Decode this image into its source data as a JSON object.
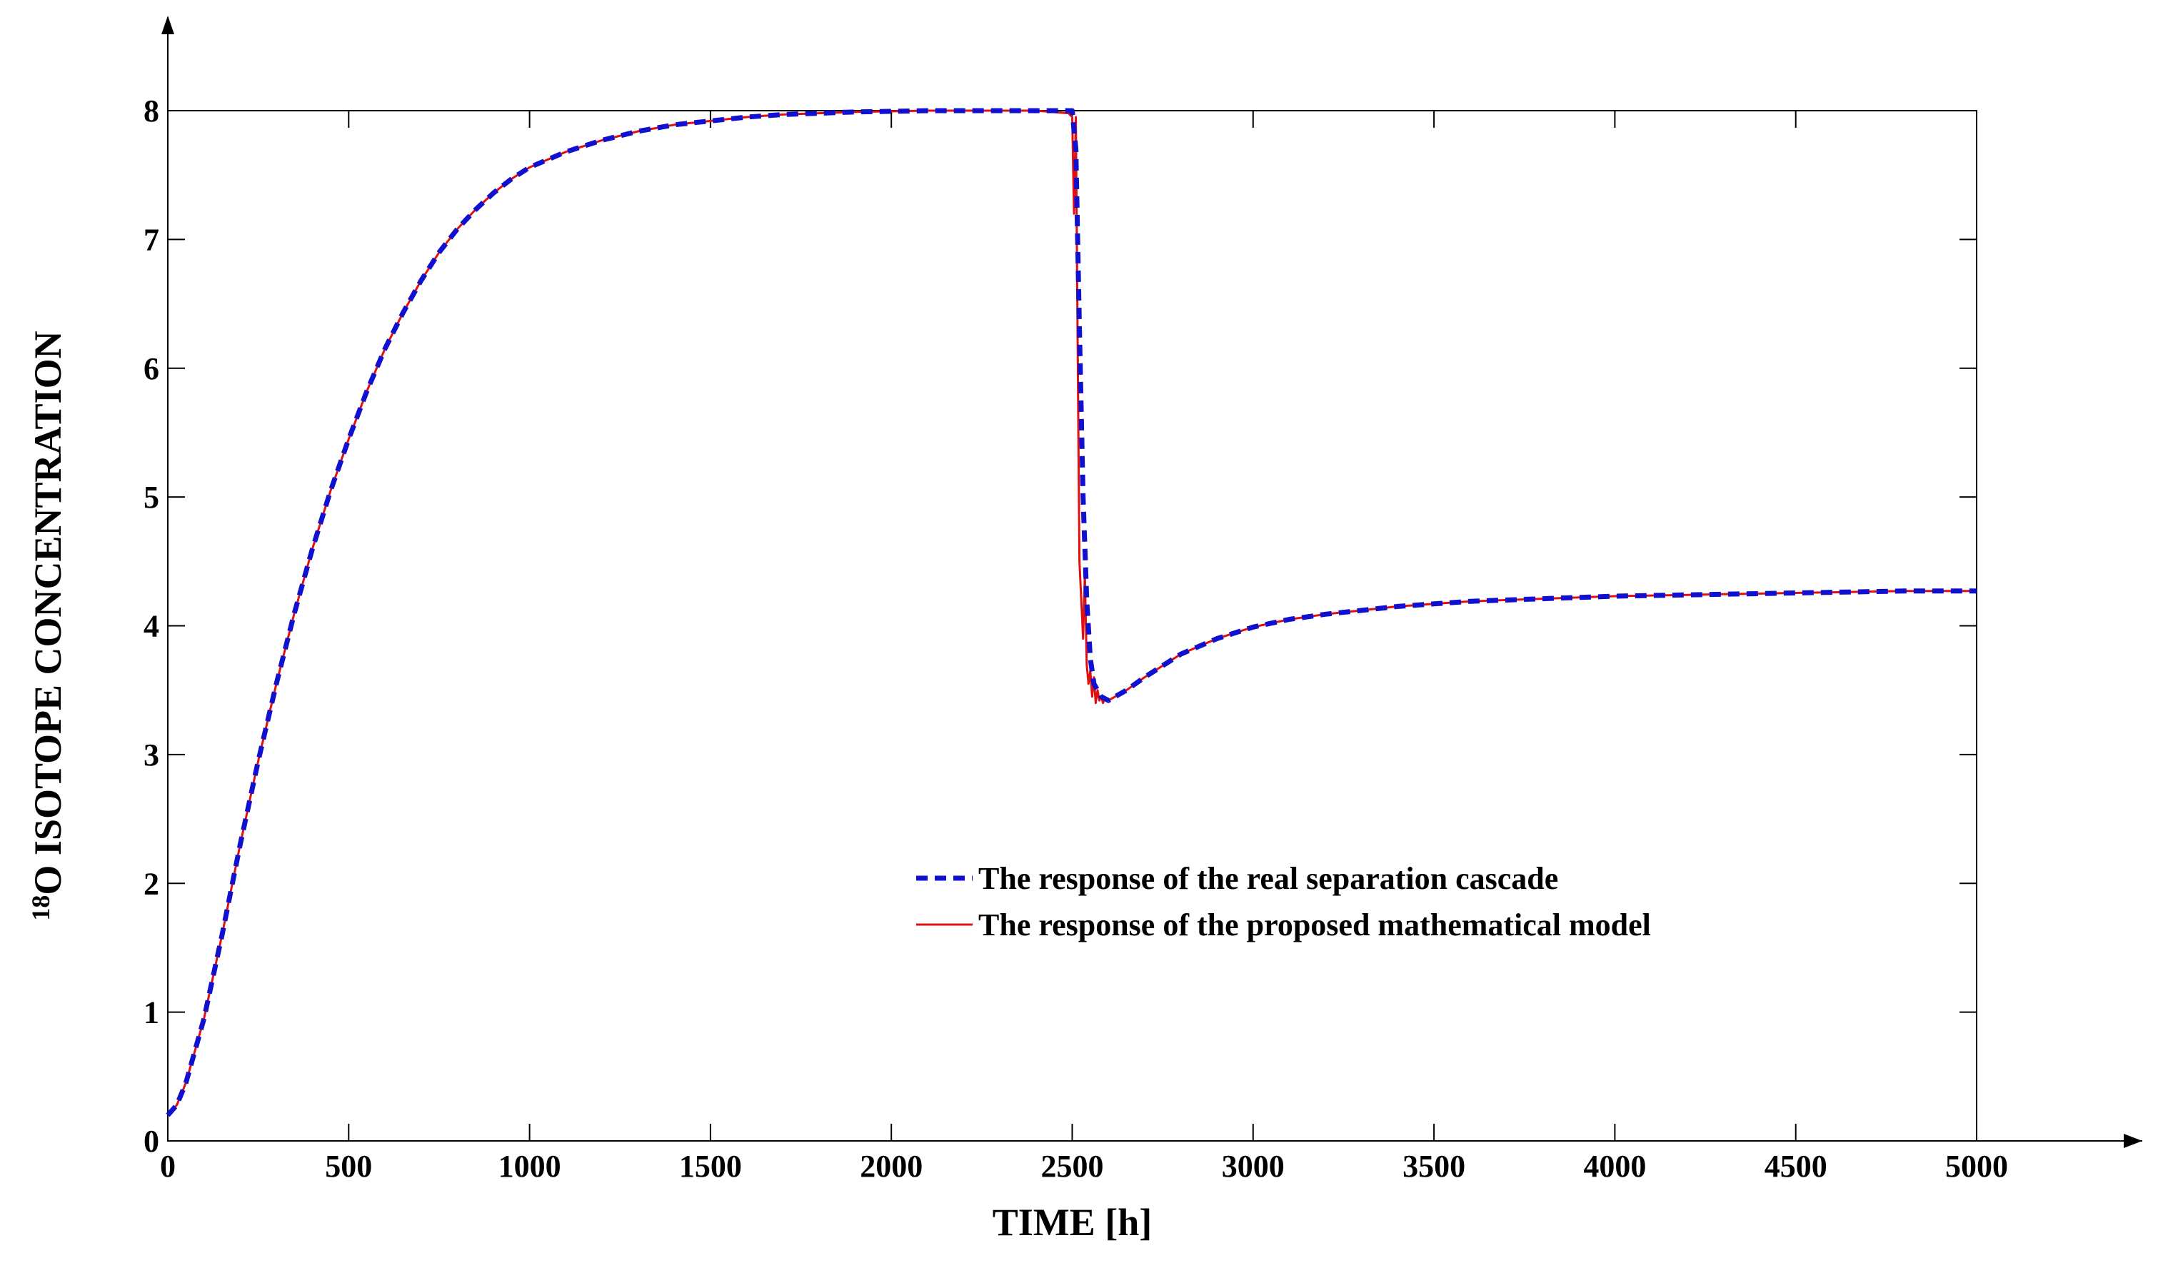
{
  "chart_data": {
    "type": "line",
    "xlabel": "TIME [h]",
    "ylabel_sup": "18",
    "ylabel_main": "O ISOTOPE CONCENTRATION",
    "xlim": [
      0,
      5000
    ],
    "ylim": [
      0,
      8
    ],
    "xticks": [
      0,
      500,
      1000,
      1500,
      2000,
      2500,
      3000,
      3500,
      4000,
      4500,
      5000
    ],
    "yticks": [
      0,
      1,
      2,
      3,
      4,
      5,
      6,
      7,
      8
    ],
    "grid": false,
    "legend_position": "center",
    "series": [
      {
        "name": "The response of the real separation cascade",
        "color": "#1010d0",
        "style": "dashed",
        "x": [
          0,
          25,
          50,
          100,
          150,
          200,
          250,
          300,
          350,
          400,
          450,
          500,
          550,
          600,
          650,
          700,
          750,
          800,
          850,
          900,
          950,
          1000,
          1100,
          1200,
          1300,
          1400,
          1500,
          1600,
          1700,
          1800,
          1900,
          2000,
          2100,
          2200,
          2300,
          2400,
          2500,
          2510,
          2520,
          2530,
          2540,
          2550,
          2560,
          2580,
          2600,
          2650,
          2700,
          2800,
          2900,
          3000,
          3100,
          3200,
          3300,
          3400,
          3500,
          3600,
          3800,
          4000,
          4200,
          4400,
          4600,
          4800,
          5000
        ],
        "y": [
          0.2,
          0.28,
          0.45,
          0.95,
          1.6,
          2.3,
          2.95,
          3.55,
          4.1,
          4.6,
          5.05,
          5.45,
          5.82,
          6.15,
          6.43,
          6.68,
          6.9,
          7.08,
          7.23,
          7.36,
          7.47,
          7.56,
          7.68,
          7.77,
          7.84,
          7.89,
          7.92,
          7.95,
          7.97,
          7.98,
          7.99,
          7.995,
          8.0,
          8.0,
          8.0,
          8.0,
          8.0,
          7.7,
          6.3,
          5.0,
          4.2,
          3.75,
          3.55,
          3.45,
          3.42,
          3.5,
          3.6,
          3.78,
          3.9,
          3.99,
          4.05,
          4.09,
          4.12,
          4.15,
          4.17,
          4.19,
          4.21,
          4.23,
          4.24,
          4.25,
          4.26,
          4.27,
          4.27
        ]
      },
      {
        "name": "The response of the proposed mathematical model",
        "color": "#e01010",
        "style": "solid",
        "x": [
          0,
          25,
          50,
          100,
          150,
          200,
          250,
          300,
          350,
          400,
          450,
          500,
          550,
          600,
          650,
          700,
          750,
          800,
          850,
          900,
          950,
          1000,
          1100,
          1200,
          1300,
          1400,
          1500,
          1600,
          1700,
          1800,
          1900,
          2000,
          2100,
          2200,
          2300,
          2400,
          2490,
          2500,
          2505,
          2510,
          2515,
          2520,
          2525,
          2530,
          2535,
          2540,
          2545,
          2550,
          2555,
          2560,
          2565,
          2570,
          2575,
          2580,
          2585,
          2590,
          2600,
          2650,
          2700,
          2800,
          2900,
          3000,
          3100,
          3200,
          3300,
          3400,
          3500,
          3600,
          3800,
          4000,
          4200,
          4400,
          4600,
          4800,
          5000
        ],
        "y": [
          0.2,
          0.28,
          0.45,
          0.95,
          1.6,
          2.3,
          2.95,
          3.55,
          4.1,
          4.6,
          5.05,
          5.45,
          5.82,
          6.15,
          6.43,
          6.68,
          6.9,
          7.08,
          7.23,
          7.36,
          7.47,
          7.56,
          7.68,
          7.77,
          7.84,
          7.89,
          7.92,
          7.95,
          7.97,
          7.98,
          7.99,
          7.995,
          8.0,
          8.0,
          8.0,
          8.0,
          7.98,
          7.95,
          7.2,
          7.95,
          6.2,
          4.5,
          4.2,
          3.9,
          4.4,
          3.7,
          3.55,
          3.65,
          3.45,
          3.6,
          3.4,
          3.5,
          3.42,
          3.45,
          3.4,
          3.44,
          3.42,
          3.5,
          3.6,
          3.78,
          3.9,
          3.99,
          4.05,
          4.09,
          4.12,
          4.15,
          4.17,
          4.19,
          4.21,
          4.23,
          4.24,
          4.25,
          4.26,
          4.27,
          4.27
        ]
      }
    ]
  }
}
